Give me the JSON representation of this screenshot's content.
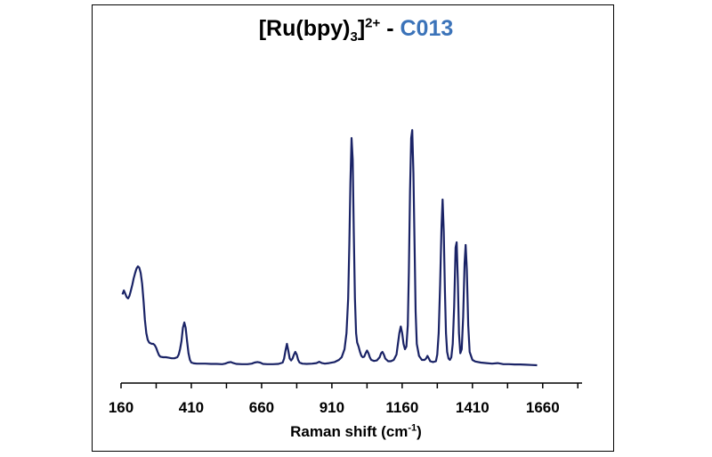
{
  "chart_data": {
    "type": "line",
    "title": {
      "prefix": "[Ru(bpy)",
      "sub": "3",
      "mid": "]",
      "sup": "2+",
      "dash": " - ",
      "accent": "C013"
    },
    "xlabel": {
      "text": "Raman shift (cm",
      "sup": "-1",
      "close": ")"
    },
    "ylabel": "",
    "xlim": [
      160,
      1800
    ],
    "ylim": [
      0,
      1.0
    ],
    "x_ticks": [
      160,
      410,
      660,
      910,
      1160,
      1410,
      1660
    ],
    "x_minor_ticks": [
      160,
      285,
      410,
      535,
      660,
      785,
      910,
      1035,
      1160,
      1285,
      1410,
      1535,
      1660,
      1785
    ],
    "grid": false,
    "legend": "none",
    "series": [
      {
        "color": "#1a2366",
        "points": [
          [
            165,
            0.265
          ],
          [
            170,
            0.28
          ],
          [
            175,
            0.268
          ],
          [
            180,
            0.255
          ],
          [
            185,
            0.25
          ],
          [
            190,
            0.26
          ],
          [
            195,
            0.28
          ],
          [
            200,
            0.3
          ],
          [
            205,
            0.325
          ],
          [
            210,
            0.345
          ],
          [
            215,
            0.362
          ],
          [
            220,
            0.37
          ],
          [
            225,
            0.365
          ],
          [
            230,
            0.345
          ],
          [
            235,
            0.305
          ],
          [
            240,
            0.24
          ],
          [
            245,
            0.17
          ],
          [
            250,
            0.12
          ],
          [
            255,
            0.095
          ],
          [
            260,
            0.085
          ],
          [
            265,
            0.082
          ],
          [
            270,
            0.08
          ],
          [
            275,
            0.08
          ],
          [
            280,
            0.075
          ],
          [
            285,
            0.065
          ],
          [
            290,
            0.05
          ],
          [
            295,
            0.038
          ],
          [
            300,
            0.032
          ],
          [
            310,
            0.03
          ],
          [
            320,
            0.03
          ],
          [
            330,
            0.028
          ],
          [
            340,
            0.026
          ],
          [
            350,
            0.026
          ],
          [
            360,
            0.03
          ],
          [
            365,
            0.04
          ],
          [
            370,
            0.06
          ],
          [
            375,
            0.09
          ],
          [
            380,
            0.14
          ],
          [
            385,
            0.16
          ],
          [
            390,
            0.14
          ],
          [
            395,
            0.09
          ],
          [
            400,
            0.045
          ],
          [
            405,
            0.02
          ],
          [
            410,
            0.01
          ],
          [
            420,
            0.007
          ],
          [
            430,
            0.006
          ],
          [
            460,
            0.006
          ],
          [
            480,
            0.005
          ],
          [
            500,
            0.005
          ],
          [
            520,
            0.004
          ],
          [
            530,
            0.006
          ],
          [
            540,
            0.01
          ],
          [
            550,
            0.012
          ],
          [
            560,
            0.008
          ],
          [
            570,
            0.005
          ],
          [
            590,
            0.004
          ],
          [
            610,
            0.004
          ],
          [
            625,
            0.006
          ],
          [
            635,
            0.01
          ],
          [
            645,
            0.012
          ],
          [
            655,
            0.01
          ],
          [
            665,
            0.005
          ],
          [
            680,
            0.004
          ],
          [
            700,
            0.004
          ],
          [
            720,
            0.005
          ],
          [
            735,
            0.01
          ],
          [
            740,
            0.025
          ],
          [
            745,
            0.055
          ],
          [
            750,
            0.08
          ],
          [
            755,
            0.055
          ],
          [
            760,
            0.025
          ],
          [
            765,
            0.018
          ],
          [
            770,
            0.025
          ],
          [
            775,
            0.04
          ],
          [
            780,
            0.05
          ],
          [
            785,
            0.04
          ],
          [
            790,
            0.02
          ],
          [
            795,
            0.01
          ],
          [
            805,
            0.006
          ],
          [
            820,
            0.005
          ],
          [
            840,
            0.006
          ],
          [
            855,
            0.008
          ],
          [
            865,
            0.013
          ],
          [
            875,
            0.008
          ],
          [
            885,
            0.006
          ],
          [
            900,
            0.008
          ],
          [
            920,
            0.012
          ],
          [
            935,
            0.02
          ],
          [
            945,
            0.03
          ],
          [
            955,
            0.06
          ],
          [
            962,
            0.12
          ],
          [
            968,
            0.25
          ],
          [
            972,
            0.45
          ],
          [
            976,
            0.68
          ],
          [
            980,
            0.85
          ],
          [
            984,
            0.77
          ],
          [
            988,
            0.5
          ],
          [
            992,
            0.25
          ],
          [
            996,
            0.12
          ],
          [
            1000,
            0.085
          ],
          [
            1005,
            0.07
          ],
          [
            1010,
            0.05
          ],
          [
            1015,
            0.035
          ],
          [
            1020,
            0.03
          ],
          [
            1025,
            0.032
          ],
          [
            1030,
            0.045
          ],
          [
            1035,
            0.055
          ],
          [
            1040,
            0.045
          ],
          [
            1045,
            0.03
          ],
          [
            1050,
            0.02
          ],
          [
            1060,
            0.016
          ],
          [
            1070,
            0.018
          ],
          [
            1080,
            0.03
          ],
          [
            1085,
            0.045
          ],
          [
            1090,
            0.05
          ],
          [
            1095,
            0.04
          ],
          [
            1100,
            0.025
          ],
          [
            1110,
            0.015
          ],
          [
            1120,
            0.015
          ],
          [
            1130,
            0.02
          ],
          [
            1140,
            0.04
          ],
          [
            1145,
            0.08
          ],
          [
            1150,
            0.12
          ],
          [
            1155,
            0.145
          ],
          [
            1160,
            0.12
          ],
          [
            1165,
            0.08
          ],
          [
            1170,
            0.06
          ],
          [
            1175,
            0.07
          ],
          [
            1180,
            0.15
          ],
          [
            1184,
            0.35
          ],
          [
            1188,
            0.65
          ],
          [
            1192,
            0.85
          ],
          [
            1196,
            0.88
          ],
          [
            1200,
            0.72
          ],
          [
            1204,
            0.45
          ],
          [
            1208,
            0.2
          ],
          [
            1212,
            0.08
          ],
          [
            1220,
            0.035
          ],
          [
            1230,
            0.02
          ],
          [
            1240,
            0.02
          ],
          [
            1245,
            0.025
          ],
          [
            1250,
            0.035
          ],
          [
            1255,
            0.025
          ],
          [
            1260,
            0.015
          ],
          [
            1270,
            0.012
          ],
          [
            1280,
            0.015
          ],
          [
            1285,
            0.04
          ],
          [
            1290,
            0.12
          ],
          [
            1295,
            0.3
          ],
          [
            1300,
            0.52
          ],
          [
            1304,
            0.62
          ],
          [
            1308,
            0.5
          ],
          [
            1312,
            0.28
          ],
          [
            1316,
            0.12
          ],
          [
            1320,
            0.05
          ],
          [
            1325,
            0.025
          ],
          [
            1330,
            0.02
          ],
          [
            1335,
            0.03
          ],
          [
            1340,
            0.08
          ],
          [
            1345,
            0.22
          ],
          [
            1350,
            0.44
          ],
          [
            1354,
            0.46
          ],
          [
            1358,
            0.32
          ],
          [
            1362,
            0.12
          ],
          [
            1367,
            0.045
          ],
          [
            1372,
            0.06
          ],
          [
            1377,
            0.18
          ],
          [
            1382,
            0.38
          ],
          [
            1386,
            0.45
          ],
          [
            1390,
            0.36
          ],
          [
            1395,
            0.15
          ],
          [
            1400,
            0.05
          ],
          [
            1410,
            0.02
          ],
          [
            1420,
            0.014
          ],
          [
            1440,
            0.01
          ],
          [
            1460,
            0.008
          ],
          [
            1480,
            0.006
          ],
          [
            1500,
            0.008
          ],
          [
            1520,
            0.004
          ],
          [
            1540,
            0.004
          ],
          [
            1560,
            0.003
          ],
          [
            1580,
            0.003
          ],
          [
            1600,
            0.002
          ],
          [
            1620,
            0.001
          ],
          [
            1640,
            0.0
          ]
        ]
      }
    ]
  }
}
